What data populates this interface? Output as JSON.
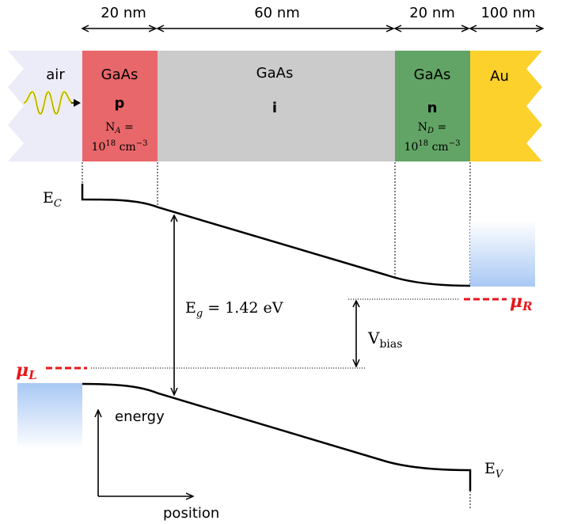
{
  "dimensions": {
    "p_width": "20 nm",
    "i_width": "60 nm",
    "n_width": "20 nm",
    "au_width": "100 nm"
  },
  "layers": {
    "air": {
      "label": "air",
      "color": "#ecebf8"
    },
    "p": {
      "material": "GaAs",
      "type": "p",
      "dopant_var": "N",
      "dopant_sub": "A",
      "conc_base": "10",
      "conc_exp": "18",
      "conc_unit": "cm",
      "conc_unit_exp": "−3",
      "color": "#e8676a"
    },
    "i": {
      "material": "GaAs",
      "type": "i",
      "color": "#cbcbcb"
    },
    "n": {
      "material": "GaAs",
      "type": "n",
      "dopant_var": "N",
      "dopant_sub": "D",
      "conc_base": "10",
      "conc_exp": "18",
      "conc_unit": "cm",
      "conc_unit_exp": "−3",
      "color": "#62a465"
    },
    "au": {
      "label": "Au",
      "color": "#fdd12b"
    }
  },
  "bands": {
    "ec_main": "E",
    "ec_sub": "C",
    "ev_main": "E",
    "ev_sub": "V",
    "eg_main": "E",
    "eg_sub": "g",
    "eg_value": "= 1.42 eV",
    "vbias_main": "V",
    "vbias_sub": "bias",
    "mu_l_main": "μ",
    "mu_l_sub": "L",
    "mu_r_main": "μ",
    "mu_r_sub": "R"
  },
  "axes": {
    "y_label": "energy",
    "x_label": "position"
  },
  "colors": {
    "chemical_potential": "#e8161a",
    "wave": "#f3ef1a",
    "contact_gradient": "#a9c8f4"
  }
}
